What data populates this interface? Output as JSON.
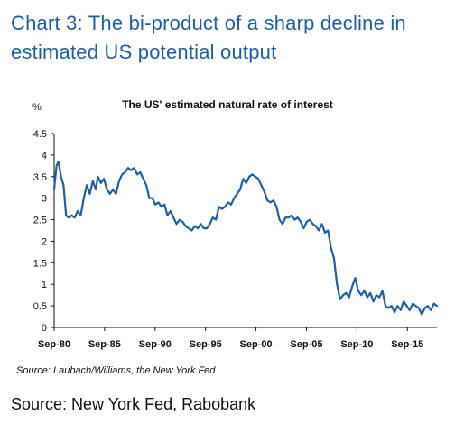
{
  "headline": {
    "line1": "Chart 3: The bi-product of a sharp decline in",
    "line2": "estimated US potential output"
  },
  "chart_data": {
    "type": "line",
    "title": "The US' estimated natural rate of interest",
    "y_unit": "%",
    "xlabel": "",
    "ylabel": "%",
    "ylim": [
      0,
      4.5
    ],
    "yticks": [
      "0",
      "0.5",
      "1",
      "1.5",
      "2",
      "2.5",
      "3",
      "3.5",
      "4",
      "4.5"
    ],
    "xlim": [
      1980.67,
      2018.6
    ],
    "xticks": [
      {
        "label": "Sep-80",
        "value": 1980.67
      },
      {
        "label": "Sep-85",
        "value": 1985.67
      },
      {
        "label": "Sep-90",
        "value": 1990.67
      },
      {
        "label": "Sep-95",
        "value": 1995.67
      },
      {
        "label": "Sep-00",
        "value": 2000.67
      },
      {
        "label": "Sep-05",
        "value": 2005.67
      },
      {
        "label": "Sep-10",
        "value": 2010.67
      },
      {
        "label": "Sep-15",
        "value": 2015.67
      }
    ],
    "grid": false,
    "legend": "none",
    "series": [
      {
        "color": "#1f5fa8",
        "x": [
          1980.67,
          1980.9,
          1981.1,
          1981.35,
          1981.6,
          1981.85,
          1982.1,
          1982.4,
          1982.7,
          1983.0,
          1983.3,
          1983.6,
          1983.9,
          1984.2,
          1984.5,
          1984.8,
          1985.0,
          1985.3,
          1985.6,
          1985.9,
          1986.2,
          1986.5,
          1986.8,
          1987.1,
          1987.4,
          1987.7,
          1988.0,
          1988.3,
          1988.6,
          1988.9,
          1989.2,
          1989.5,
          1989.8,
          1990.1,
          1990.4,
          1990.7,
          1991.0,
          1991.3,
          1991.6,
          1991.9,
          1992.2,
          1992.5,
          1992.8,
          1993.1,
          1993.4,
          1993.7,
          1994.0,
          1994.3,
          1994.6,
          1994.9,
          1995.2,
          1995.5,
          1995.8,
          1996.1,
          1996.4,
          1996.7,
          1997.0,
          1997.3,
          1997.6,
          1997.9,
          1998.2,
          1998.5,
          1998.8,
          1999.1,
          1999.4,
          1999.7,
          2000.0,
          2000.3,
          2000.6,
          2000.9,
          2001.2,
          2001.5,
          2001.8,
          2002.1,
          2002.4,
          2002.7,
          2003.0,
          2003.3,
          2003.6,
          2003.9,
          2004.2,
          2004.5,
          2004.8,
          2005.1,
          2005.4,
          2005.7,
          2006.0,
          2006.3,
          2006.6,
          2006.9,
          2007.2,
          2007.5,
          2007.8,
          2008.1,
          2008.4,
          2008.7,
          2009.0,
          2009.3,
          2009.6,
          2009.9,
          2010.2,
          2010.5,
          2010.8,
          2011.1,
          2011.4,
          2011.7,
          2012.0,
          2012.3,
          2012.6,
          2012.9,
          2013.2,
          2013.5,
          2013.8,
          2014.1,
          2014.4,
          2014.7,
          2015.0,
          2015.3,
          2015.6,
          2015.9,
          2016.2,
          2016.5,
          2016.8,
          2017.1,
          2017.4,
          2017.7,
          2018.0,
          2018.3,
          2018.6
        ],
        "values": [
          3.2,
          3.75,
          3.85,
          3.5,
          3.3,
          2.6,
          2.55,
          2.6,
          2.55,
          2.7,
          2.6,
          3.0,
          3.3,
          3.1,
          3.4,
          3.2,
          3.5,
          3.35,
          3.45,
          3.2,
          3.1,
          3.2,
          3.1,
          3.4,
          3.55,
          3.6,
          3.7,
          3.65,
          3.7,
          3.55,
          3.6,
          3.45,
          3.3,
          3.0,
          3.0,
          2.85,
          2.9,
          2.8,
          2.85,
          2.6,
          2.7,
          2.55,
          2.4,
          2.5,
          2.45,
          2.35,
          2.3,
          2.25,
          2.35,
          2.3,
          2.4,
          2.3,
          2.3,
          2.4,
          2.55,
          2.5,
          2.8,
          2.75,
          2.8,
          2.9,
          2.85,
          3.0,
          3.1,
          3.2,
          3.45,
          3.35,
          3.5,
          3.55,
          3.5,
          3.45,
          3.3,
          3.15,
          2.95,
          2.9,
          2.95,
          2.8,
          2.5,
          2.4,
          2.55,
          2.55,
          2.6,
          2.5,
          2.55,
          2.45,
          2.3,
          2.45,
          2.5,
          2.4,
          2.35,
          2.25,
          2.4,
          2.2,
          2.25,
          1.85,
          1.6,
          1.0,
          0.65,
          0.75,
          0.8,
          0.7,
          0.95,
          1.15,
          0.85,
          0.75,
          0.85,
          0.7,
          0.8,
          0.6,
          0.75,
          0.7,
          0.85,
          0.5,
          0.45,
          0.5,
          0.35,
          0.5,
          0.4,
          0.6,
          0.5,
          0.4,
          0.55,
          0.5,
          0.45,
          0.3,
          0.45,
          0.5,
          0.4,
          0.55,
          0.5
        ]
      }
    ]
  },
  "chart_source": "Source: Laubach/Williams, the New York Fed",
  "source": "Source: New York Fed, Rabobank"
}
